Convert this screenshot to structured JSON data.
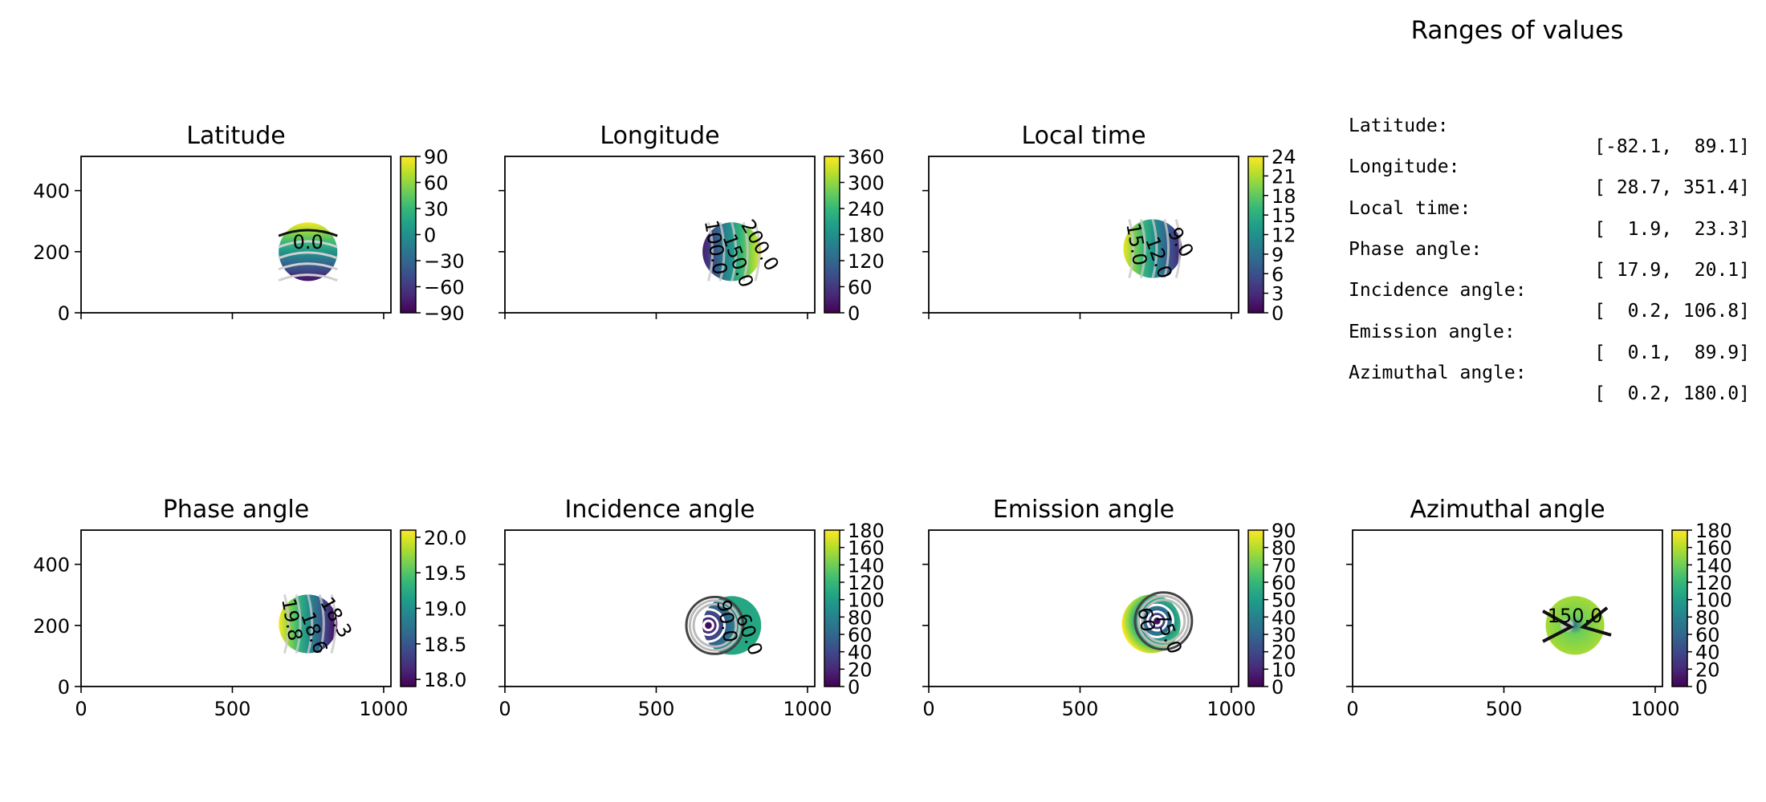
{
  "ranges": {
    "title": "Ranges of values",
    "rows": [
      {
        "name": "Latitude:",
        "value": "[-82.1,  89.1]"
      },
      {
        "name": "Longitude:",
        "value": "[ 28.7, 351.4]"
      },
      {
        "name": "Local time:",
        "value": "[  1.9,  23.3]"
      },
      {
        "name": "Phase angle:",
        "value": "[ 17.9,  20.1]"
      },
      {
        "name": "Incidence angle:",
        "value": "[  0.2, 106.8]"
      },
      {
        "name": "Emission angle:",
        "value": "[  0.1,  89.9]"
      },
      {
        "name": "Azimuthal angle:",
        "value": "[  0.2, 180.0]"
      }
    ]
  },
  "chart_data": [
    {
      "type": "heatmap",
      "title": "Latitude",
      "colormap": "viridis",
      "xlim": [
        0,
        1024
      ],
      "ylim": [
        0,
        512
      ],
      "xticks": [
        0,
        500,
        1000
      ],
      "yticks": [
        0,
        200,
        400
      ],
      "show_xticklabels": false,
      "show_yticklabels": true,
      "disk": {
        "cx": 750,
        "cy": 200,
        "r": 97,
        "value_range": [
          -82.1,
          89.1
        ],
        "gradient": "vertical-up"
      },
      "colorbar": {
        "vmin": -90,
        "vmax": 90,
        "ticks": [
          90,
          60,
          30,
          0,
          -30,
          -60,
          -90
        ],
        "tick_labels": [
          "90",
          "60",
          "30",
          "0",
          "−30",
          "−60",
          "−90"
        ]
      },
      "contour_labels": [
        "0.0"
      ]
    },
    {
      "type": "heatmap",
      "title": "Longitude",
      "colormap": "viridis",
      "xlim": [
        0,
        1024
      ],
      "ylim": [
        0,
        512
      ],
      "xticks": [
        0,
        500,
        1000
      ],
      "yticks": [
        0,
        200,
        400
      ],
      "show_xticklabels": false,
      "show_yticklabels": false,
      "disk": {
        "cx": 750,
        "cy": 200,
        "r": 97,
        "value_range": [
          28.7,
          351.4
        ],
        "gradient": "horizontal-right"
      },
      "colorbar": {
        "vmin": 0,
        "vmax": 360,
        "ticks": [
          360,
          300,
          240,
          180,
          120,
          60,
          0
        ],
        "tick_labels": [
          "360",
          "300",
          "240",
          "180",
          "120",
          "60",
          "0"
        ]
      },
      "contour_labels": [
        "100.0",
        "150.0",
        "200.0"
      ]
    },
    {
      "type": "heatmap",
      "title": "Local time",
      "colormap": "viridis",
      "xlim": [
        0,
        1024
      ],
      "ylim": [
        0,
        512
      ],
      "xticks": [
        0,
        500,
        1000
      ],
      "yticks": [
        0,
        200,
        400
      ],
      "show_xticklabels": false,
      "show_yticklabels": false,
      "disk": {
        "cx": 740,
        "cy": 210,
        "r": 97,
        "value_range": [
          1.9,
          23.3
        ],
        "gradient": "horizontal-left"
      },
      "colorbar": {
        "vmin": 0,
        "vmax": 24,
        "ticks": [
          24,
          21,
          18,
          15,
          12,
          9,
          6,
          3,
          0
        ],
        "tick_labels": [
          "24",
          "21",
          "18",
          "15",
          "12",
          "9",
          "6",
          "3",
          "0"
        ]
      },
      "contour_labels": [
        "15.0",
        "12.0",
        "9.0"
      ]
    },
    {
      "type": "heatmap",
      "title": "Phase angle",
      "colormap": "viridis",
      "xlim": [
        0,
        1024
      ],
      "ylim": [
        0,
        512
      ],
      "xticks": [
        0,
        500,
        1000
      ],
      "yticks": [
        0,
        200,
        400
      ],
      "show_xticklabels": true,
      "show_yticklabels": true,
      "disk": {
        "cx": 750,
        "cy": 205,
        "r": 97,
        "value_range": [
          17.9,
          20.1
        ],
        "gradient": "horizontal-left"
      },
      "colorbar": {
        "vmin": 17.9,
        "vmax": 20.1,
        "ticks": [
          20.0,
          19.5,
          19.0,
          18.5,
          18.0
        ],
        "tick_labels": [
          "20.0",
          "19.5",
          "19.0",
          "18.5",
          "18.0"
        ]
      },
      "contour_labels": [
        "19.8",
        "18.6",
        "18.3"
      ]
    },
    {
      "type": "heatmap",
      "title": "Incidence angle",
      "colormap": "viridis",
      "xlim": [
        0,
        1024
      ],
      "ylim": [
        0,
        512
      ],
      "xticks": [
        0,
        500,
        1000
      ],
      "yticks": [
        0,
        200,
        400
      ],
      "show_xticklabels": true,
      "show_yticklabels": false,
      "disk": {
        "cx": 750,
        "cy": 200,
        "r": 97,
        "value_range": [
          0.2,
          106.8
        ],
        "gradient": "radial",
        "center_offset": [
          -40,
          0
        ]
      },
      "colorbar": {
        "vmin": 0,
        "vmax": 180,
        "ticks": [
          180,
          160,
          140,
          120,
          100,
          80,
          60,
          40,
          20,
          0
        ],
        "tick_labels": [
          "180",
          "160",
          "140",
          "120",
          "100",
          "80",
          "60",
          "40",
          "20",
          "0"
        ]
      },
      "contour_labels": [
        "90.0",
        "60.0"
      ]
    },
    {
      "type": "heatmap",
      "title": "Emission angle",
      "colormap": "viridis",
      "xlim": [
        0,
        1024
      ],
      "ylim": [
        0,
        512
      ],
      "xticks": [
        0,
        500,
        1000
      ],
      "yticks": [
        0,
        200,
        400
      ],
      "show_xticklabels": true,
      "show_yticklabels": false,
      "disk": {
        "cx": 735,
        "cy": 205,
        "r": 97,
        "value_range": [
          0.1,
          89.9
        ],
        "gradient": "radial",
        "center_offset": [
          10,
          -5
        ]
      },
      "colorbar": {
        "vmin": 0,
        "vmax": 90,
        "ticks": [
          90,
          80,
          70,
          60,
          50,
          40,
          30,
          20,
          10,
          0
        ],
        "tick_labels": [
          "90",
          "80",
          "70",
          "60",
          "50",
          "40",
          "30",
          "20",
          "10",
          "0"
        ]
      },
      "contour_labels": [
        "60",
        "75.0"
      ]
    },
    {
      "type": "heatmap",
      "title": "Azimuthal angle",
      "colormap": "viridis",
      "xlim": [
        0,
        1024
      ],
      "ylim": [
        0,
        512
      ],
      "xticks": [
        0,
        500,
        1000
      ],
      "yticks": [
        0,
        200,
        400
      ],
      "show_xticklabels": true,
      "show_yticklabels": false,
      "disk": {
        "cx": 735,
        "cy": 200,
        "r": 97,
        "value_range": [
          0.2,
          180.0
        ],
        "gradient": "azimuthal"
      },
      "colorbar": {
        "vmin": 0,
        "vmax": 180,
        "ticks": [
          180,
          160,
          140,
          120,
          100,
          80,
          60,
          40,
          20,
          0
        ],
        "tick_labels": [
          "180",
          "160",
          "140",
          "120",
          "100",
          "80",
          "60",
          "40",
          "20",
          "0"
        ]
      },
      "contour_labels": [
        "150.0"
      ]
    }
  ]
}
